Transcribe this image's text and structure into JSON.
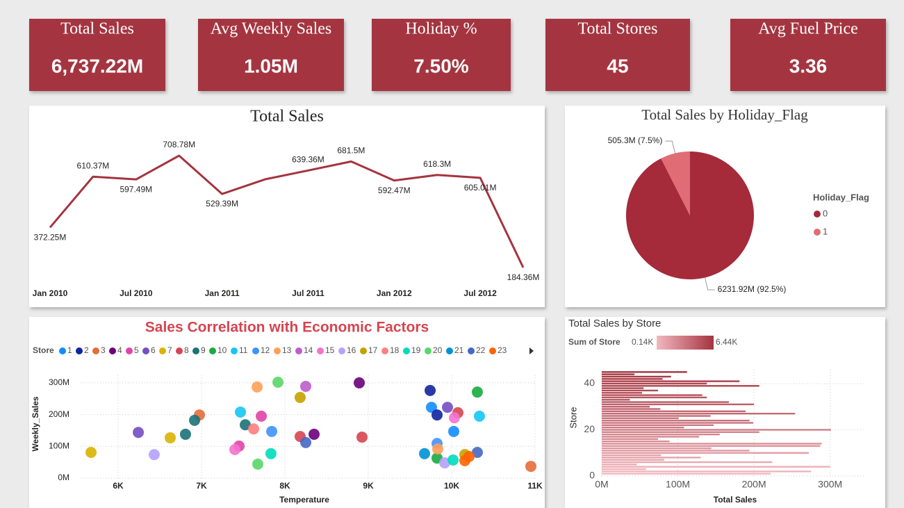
{
  "kpis": [
    {
      "title": "Total Sales",
      "value": "6,737.22M"
    },
    {
      "title": "Avg Weekly Sales",
      "value": "1.05M"
    },
    {
      "title": "Holiday %",
      "value": "7.50%"
    },
    {
      "title": "Total Stores",
      "value": "45"
    },
    {
      "title": "Avg Fuel Price",
      "value": "3.36"
    }
  ],
  "chart_data": [
    {
      "type": "line",
      "title": "Total Sales",
      "color": "#a4343f",
      "categories": [
        "Jan 2010",
        null,
        "Jul 2010",
        null,
        "Jan 2011",
        null,
        "Jul 2011",
        null,
        "Jan 2012",
        null,
        "Jul 2012",
        null
      ],
      "values": [
        372.25,
        610.37,
        597.49,
        708.78,
        529.39,
        598,
        639.36,
        681.5,
        592.47,
        618.3,
        605.01,
        184.36
      ],
      "value_labels": [
        "372.25M",
        "610.37M",
        "597.49M",
        "708.78M",
        "529.39M",
        null,
        "639.36M",
        "681.5M",
        "592.47M",
        "618.3M",
        "605.01M",
        "184.36M"
      ]
    },
    {
      "type": "pie",
      "title": "Total Sales by Holiday_Flag",
      "legend_title": "Holiday_Flag",
      "categories": [
        "0",
        "1"
      ],
      "values": [
        6231.92,
        505.3
      ],
      "value_labels": [
        "6231.92M (92.5%)",
        "505.3M (7.5%)"
      ],
      "colors": [
        "#a52a3a",
        "#e06c75"
      ]
    },
    {
      "type": "scatter",
      "title": "Sales Correlation with Economic Factors",
      "legend_title": "Store",
      "xlabel": "Temperature",
      "ylabel": "Weekly_Sales",
      "grid": true,
      "xlim": [
        5550,
        11000
      ],
      "xticks": [
        {
          "value": 6000,
          "label": "6K"
        },
        {
          "value": 7000,
          "label": "7K"
        },
        {
          "value": 8000,
          "label": "8K"
        },
        {
          "value": 9000,
          "label": "9K"
        },
        {
          "value": 10000,
          "label": "10K"
        },
        {
          "value": 11000,
          "label": "11K"
        }
      ],
      "ylim": [
        -25,
        325
      ],
      "yticks": [
        {
          "value": 0,
          "label": "0M"
        },
        {
          "value": 100,
          "label": "100M"
        },
        {
          "value": 200,
          "label": "200M"
        },
        {
          "value": 300,
          "label": "300M"
        }
      ],
      "series": [
        {
          "name": "1",
          "color": "#118DFF",
          "x": [
            9758,
            10025
          ],
          "values": [
            223,
            147
          ]
        },
        {
          "name": "2",
          "color": "#12239E",
          "x": [
            9742,
            9825
          ],
          "values": [
            276,
            199
          ]
        },
        {
          "name": "3",
          "color": "#E66C37",
          "x": [
            6975,
            10950
          ],
          "values": [
            199,
            37
          ]
        },
        {
          "name": "4",
          "color": "#6B007B",
          "x": [
            8892,
            8350
          ],
          "values": [
            300,
            138
          ]
        },
        {
          "name": "5",
          "color": "#E044A7",
          "x": [
            7450,
            7717
          ],
          "values": [
            101,
            195
          ]
        },
        {
          "name": "6",
          "color": "#744EC2",
          "x": [
            6242,
            9950
          ],
          "values": [
            144,
            223
          ]
        },
        {
          "name": "7",
          "color": "#D9B300",
          "x": [
            5675,
            6625
          ],
          "values": [
            81,
            127
          ]
        },
        {
          "name": "8",
          "color": "#D64550",
          "x": [
            8183,
            8925,
            10075
          ],
          "values": [
            131,
            129,
            206
          ]
        },
        {
          "name": "9",
          "color": "#197278",
          "x": [
            6808,
            6917,
            7525
          ],
          "values": [
            138,
            182,
            168
          ]
        },
        {
          "name": "10",
          "color": "#1AAB40",
          "x": [
            10308,
            9825
          ],
          "values": [
            271,
            63
          ]
        },
        {
          "name": "11",
          "color": "#15C6F4",
          "x": [
            7467,
            10333
          ],
          "values": [
            208,
            195
          ]
        },
        {
          "name": "12",
          "color": "#4092FF",
          "x": [
            9825,
            7842
          ],
          "values": [
            109,
            147
          ]
        },
        {
          "name": "13",
          "color": "#FFA058",
          "x": [
            7667,
            9833
          ],
          "values": [
            287,
            92
          ]
        },
        {
          "name": "14",
          "color": "#BE5DC9",
          "x": [
            8250
          ],
          "values": [
            289
          ]
        },
        {
          "name": "15",
          "color": "#F472D0",
          "x": [
            7400,
            10033
          ],
          "values": [
            90,
            190
          ]
        },
        {
          "name": "16",
          "color": "#B5A1FF",
          "x": [
            6433,
            9917
          ],
          "values": [
            74,
            48
          ]
        },
        {
          "name": "17",
          "color": "#C4A200",
          "x": [
            8183,
            10158
          ],
          "values": [
            254,
            74
          ]
        },
        {
          "name": "18",
          "color": "#FF8080",
          "x": [
            7625
          ],
          "values": [
            155
          ]
        },
        {
          "name": "19",
          "color": "#00DBBC",
          "x": [
            10017,
            7833
          ],
          "values": [
            57,
            77
          ]
        },
        {
          "name": "20",
          "color": "#5BD667",
          "x": [
            7917,
            7675
          ],
          "values": [
            302,
            44
          ]
        },
        {
          "name": "21",
          "color": "#0091D5",
          "x": [
            9675
          ],
          "values": [
            77
          ]
        },
        {
          "name": "22",
          "color": "#4668C5",
          "x": [
            8250,
            10308
          ],
          "values": [
            112,
            81
          ]
        },
        {
          "name": "23",
          "color": "#FF6300",
          "x": [
            10208,
            10158
          ],
          "values": [
            68,
            55
          ]
        }
      ]
    },
    {
      "type": "barh",
      "title": "Total Sales by Store",
      "xlabel": "Total Sales",
      "ylabel": "Store",
      "legend_title": "Sum of Store",
      "legend_min": "0.14K",
      "legend_max": "6.44K",
      "colors": [
        "#f2b8bf",
        "#a4343f"
      ],
      "grid": true,
      "categories": [
        1,
        2,
        3,
        4,
        5,
        6,
        7,
        8,
        9,
        10,
        11,
        12,
        13,
        14,
        15,
        16,
        17,
        18,
        19,
        20,
        21,
        22,
        23,
        24,
        25,
        26,
        27,
        28,
        29,
        30,
        31,
        32,
        33,
        34,
        35,
        36,
        37,
        38,
        39,
        40,
        41,
        42,
        43,
        44,
        45
      ],
      "values": [
        222,
        275,
        58,
        300,
        46,
        224,
        82,
        130,
        78,
        272,
        194,
        144,
        287,
        289,
        89,
        74,
        128,
        155,
        207,
        301,
        108,
        147,
        199,
        194,
        101,
        143,
        254,
        189,
        77,
        63,
        200,
        167,
        37,
        138,
        132,
        53,
        74,
        55,
        207,
        138,
        181,
        80,
        91,
        43,
        112
      ],
      "xlim": [
        0,
        345
      ],
      "xticks": [
        {
          "value": 0,
          "label": "0M"
        },
        {
          "value": 100,
          "label": "100M"
        },
        {
          "value": 200,
          "label": "200M"
        },
        {
          "value": 300,
          "label": "300M"
        }
      ],
      "ylim": [
        0,
        46
      ],
      "yticks": [
        0,
        20,
        40
      ]
    }
  ]
}
